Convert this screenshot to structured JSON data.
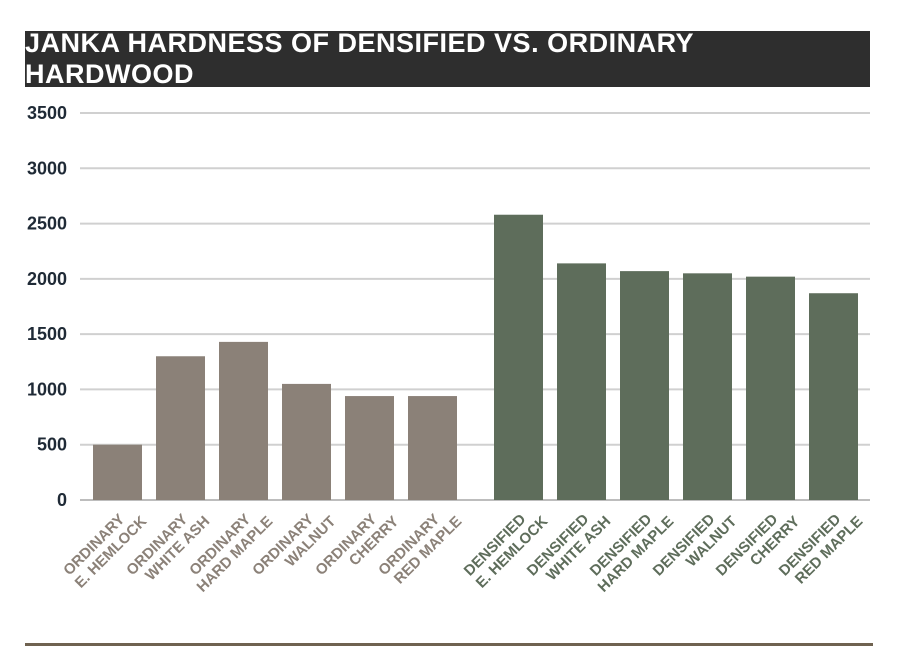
{
  "title": "JANKA HARDNESS OF DENSIFIED VS. ORDINARY HARDWOOD",
  "colors": {
    "ordinary": "#8b8178",
    "densified": "#5e6d5b",
    "title_bg": "#2e2e2e",
    "grid": "#d0d0d0"
  },
  "chart_data": {
    "type": "bar",
    "title": "JANKA HARDNESS OF DENSIFIED VS. ORDINARY HARDWOOD",
    "xlabel": "",
    "ylabel": "",
    "ylim": [
      0,
      3500
    ],
    "yticks": [
      0,
      500,
      1000,
      1500,
      2000,
      2500,
      3000,
      3500
    ],
    "grid": true,
    "categories": [
      [
        "ORDINARY",
        "E. HEMLOCK"
      ],
      [
        "ORDINARY",
        "WHITE ASH"
      ],
      [
        "ORDINARY",
        "HARD MAPLE"
      ],
      [
        "ORDINARY",
        "WALNUT"
      ],
      [
        "ORDINARY",
        "CHERRY"
      ],
      [
        "ORDINARY",
        "RED MAPLE"
      ],
      [
        "DENSIFIED",
        "E. HEMLOCK"
      ],
      [
        "DENSIFIED",
        "WHITE ASH"
      ],
      [
        "DENSIFIED",
        "HARD MAPLE"
      ],
      [
        "DENSIFIED",
        "WALNUT"
      ],
      [
        "DENSIFIED",
        "CHERRY"
      ],
      [
        "DENSIFIED",
        "RED MAPLE"
      ]
    ],
    "values": [
      500,
      1300,
      1430,
      1050,
      940,
      940,
      2580,
      2140,
      2070,
      2050,
      2020,
      1870
    ],
    "groups": [
      "ordinary",
      "ordinary",
      "ordinary",
      "ordinary",
      "ordinary",
      "ordinary",
      "densified",
      "densified",
      "densified",
      "densified",
      "densified",
      "densified"
    ]
  }
}
